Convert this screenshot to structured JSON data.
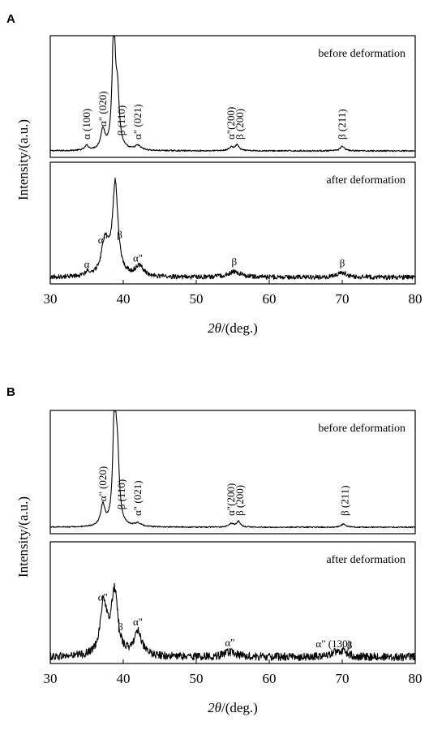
{
  "chart_data": [
    {
      "panel_label": "A",
      "type": "line",
      "x_min": 30,
      "x_max": 80,
      "x_ticks": [
        30,
        40,
        50,
        60,
        70,
        80
      ],
      "xlabel_theta": "2θ",
      "xlabel_rest": "/(deg.)",
      "ylabel": "Intensity/(a.u.)",
      "subplots": [
        {
          "label": "before deformation",
          "noise": 0.006,
          "peaks": [
            {
              "x": 35.0,
              "h": 0.04,
              "w": 0.3
            },
            {
              "x": 37.2,
              "h": 0.17,
              "w": 0.35
            },
            {
              "x": 38.7,
              "h": 1.1,
              "w": 0.25
            },
            {
              "x": 39.2,
              "h": 0.45,
              "w": 0.3
            },
            {
              "x": 42.0,
              "h": 0.04,
              "w": 0.5
            },
            {
              "x": 54.8,
              "h": 0.03,
              "w": 0.4
            },
            {
              "x": 55.6,
              "h": 0.05,
              "w": 0.3
            },
            {
              "x": 70.0,
              "h": 0.04,
              "w": 0.35
            }
          ],
          "annotations": [
            {
              "text": "α (100)",
              "x": 35.0
            },
            {
              "text": "α\" (020)",
              "x": 37.2
            },
            {
              "text": "β (110)",
              "x": 39.8
            },
            {
              "text": "α\" (021)",
              "x": 42.0
            },
            {
              "text": "α\"(200)",
              "x": 54.8
            },
            {
              "text": "β (200)",
              "x": 56.0
            },
            {
              "text": "β (211)",
              "x": 70.0
            }
          ]
        },
        {
          "label": "after deformation",
          "noise": 0.02,
          "peaks": [
            {
              "x": 35.0,
              "h": 0.03,
              "w": 0.4
            },
            {
              "x": 37.5,
              "h": 0.3,
              "w": 0.6
            },
            {
              "x": 38.9,
              "h": 0.8,
              "w": 0.45
            },
            {
              "x": 42.2,
              "h": 0.09,
              "w": 0.7
            },
            {
              "x": 55.2,
              "h": 0.05,
              "w": 1.0
            },
            {
              "x": 70.0,
              "h": 0.04,
              "w": 0.8
            }
          ],
          "annotations": [
            {
              "text": "α",
              "x": 35.0
            },
            {
              "text": "α\"",
              "x": 37.2
            },
            {
              "text": "β",
              "x": 39.5
            },
            {
              "text": "α\"",
              "x": 42.0
            },
            {
              "text": "β",
              "x": 55.2
            },
            {
              "text": "β",
              "x": 70.0
            }
          ]
        }
      ]
    },
    {
      "panel_label": "B",
      "type": "line",
      "x_min": 30,
      "x_max": 80,
      "x_ticks": [
        30,
        40,
        50,
        60,
        70,
        80
      ],
      "xlabel_theta": "2θ",
      "xlabel_rest": "/(deg.)",
      "ylabel": "Intensity/(a.u.)",
      "subplots": [
        {
          "label": "before deformation",
          "noise": 0.005,
          "peaks": [
            {
              "x": 37.2,
              "h": 0.18,
              "w": 0.35
            },
            {
              "x": 38.8,
              "h": 1.0,
              "w": 0.25
            },
            {
              "x": 39.2,
              "h": 0.55,
              "w": 0.3
            },
            {
              "x": 42.0,
              "h": 0.03,
              "w": 0.5
            },
            {
              "x": 54.8,
              "h": 0.03,
              "w": 0.4
            },
            {
              "x": 55.8,
              "h": 0.05,
              "w": 0.3
            },
            {
              "x": 70.2,
              "h": 0.03,
              "w": 0.35
            }
          ],
          "annotations": [
            {
              "text": "α\" (020)",
              "x": 37.2
            },
            {
              "text": "β (110)",
              "x": 39.8
            },
            {
              "text": "α\" (021)",
              "x": 42.0
            },
            {
              "text": "α\"(200)",
              "x": 54.8
            },
            {
              "text": "β (200)",
              "x": 56.0
            },
            {
              "text": "β (211)",
              "x": 70.4
            }
          ]
        },
        {
          "label": "after deformation",
          "noise": 0.035,
          "peaks": [
            {
              "x": 37.3,
              "h": 0.45,
              "w": 0.55
            },
            {
              "x": 38.8,
              "h": 0.55,
              "w": 0.55
            },
            {
              "x": 42.0,
              "h": 0.22,
              "w": 0.6
            },
            {
              "x": 54.6,
              "h": 0.04,
              "w": 1.0
            },
            {
              "x": 68.8,
              "h": 0.03,
              "w": 0.8
            },
            {
              "x": 70.2,
              "h": 0.05,
              "w": 0.6
            }
          ],
          "annotations": [
            {
              "text": "α\"",
              "x": 37.2
            },
            {
              "text": "β",
              "x": 39.6
            },
            {
              "text": "α\"",
              "x": 42.0
            },
            {
              "text": "α\"",
              "x": 54.6
            },
            {
              "text": "α\" (130)",
              "x": 68.8
            },
            {
              "text": "β",
              "x": 71.0
            }
          ]
        }
      ]
    }
  ]
}
